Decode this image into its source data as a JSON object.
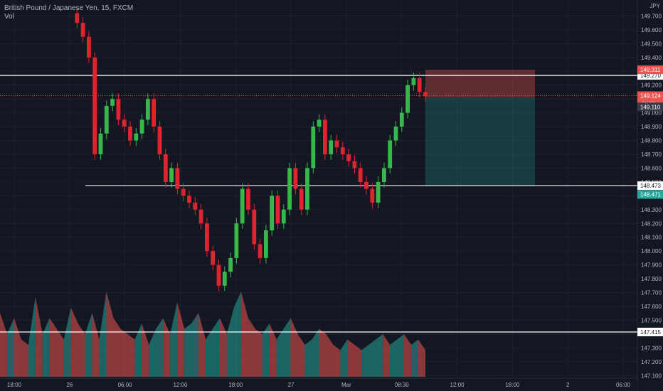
{
  "header": {
    "symbol_title": "British Pound / Japanese Yen, 15, FXCM",
    "volume_label": "Vol"
  },
  "price_axis": {
    "currency": "JPY",
    "ticks": [
      "149.700",
      "149.600",
      "149.500",
      "149.400",
      "149.300",
      "149.200",
      "149.100",
      "149.000",
      "148.900",
      "148.800",
      "148.700",
      "148.600",
      "148.500",
      "148.400",
      "148.300",
      "148.200",
      "148.100",
      "148.000",
      "147.900",
      "147.800",
      "147.700",
      "147.600",
      "147.500",
      "147.400",
      "147.300",
      "147.200",
      "147.100"
    ]
  },
  "time_axis": {
    "labels": [
      "18:00",
      "26",
      "06:00",
      "12:00",
      "18:00",
      "27",
      "Mar",
      "08:30",
      "12:00",
      "18:00",
      "2",
      "06:00"
    ]
  },
  "horizontal_lines": [
    {
      "price": 149.27,
      "label": "149.270"
    },
    {
      "price": 148.473,
      "label": "148.473"
    },
    {
      "price": 147.415,
      "label": "147.415"
    }
  ],
  "price_badges": {
    "stop": {
      "label": "149.311",
      "color": "#ef5350"
    },
    "last": {
      "label": "149.124",
      "countdown": "06:57",
      "color": "#ef5350"
    },
    "entry": {
      "label": "149.110",
      "color": "#363a45"
    },
    "target": {
      "label": "148.471",
      "color": "#26a69a"
    }
  },
  "position_tool": {
    "stop_price": 149.311,
    "entry_price": 149.11,
    "target_price": 148.471,
    "risk_color": "#ef5350",
    "reward_color": "#26a69a"
  },
  "colors": {
    "up": "#26a69a",
    "down": "#ef5350",
    "candle_up": "#36b84a",
    "candle_down": "#e0242f",
    "background": "#131722",
    "axis_text": "#b2b5be"
  },
  "chart_data": {
    "type": "candlestick",
    "symbol": "GBPJPY",
    "interval": "15",
    "ylim": [
      147.05,
      149.75
    ],
    "path": [
      149.72,
      149.65,
      149.55,
      149.4,
      148.7,
      148.85,
      149.05,
      149.1,
      148.95,
      148.9,
      148.8,
      148.85,
      148.95,
      149.1,
      148.9,
      148.7,
      148.5,
      148.6,
      148.45,
      148.4,
      148.35,
      148.3,
      148.2,
      148.0,
      147.9,
      147.75,
      147.85,
      147.95,
      148.2,
      148.45,
      148.3,
      148.05,
      147.95,
      148.15,
      148.4,
      148.2,
      148.3,
      148.6,
      148.45,
      148.3,
      148.6,
      148.9,
      148.95,
      148.7,
      148.8,
      148.75,
      148.7,
      148.65,
      148.6,
      148.5,
      148.45,
      148.35,
      148.5,
      148.6,
      148.8,
      148.9,
      149.0,
      149.2,
      149.25,
      149.15,
      149.12
    ],
    "volume_path": [
      60,
      40,
      55,
      35,
      30,
      75,
      40,
      55,
      45,
      35,
      65,
      50,
      40,
      60,
      35,
      80,
      55,
      45,
      40,
      35,
      50,
      30,
      45,
      55,
      40,
      70,
      45,
      50,
      60,
      35,
      45,
      55,
      40,
      65,
      80,
      55,
      45,
      40,
      50,
      35,
      45,
      55,
      40,
      30,
      35,
      45,
      40,
      30,
      25,
      35,
      30,
      25,
      30,
      35,
      40,
      30,
      35,
      40,
      30,
      35,
      25
    ]
  }
}
